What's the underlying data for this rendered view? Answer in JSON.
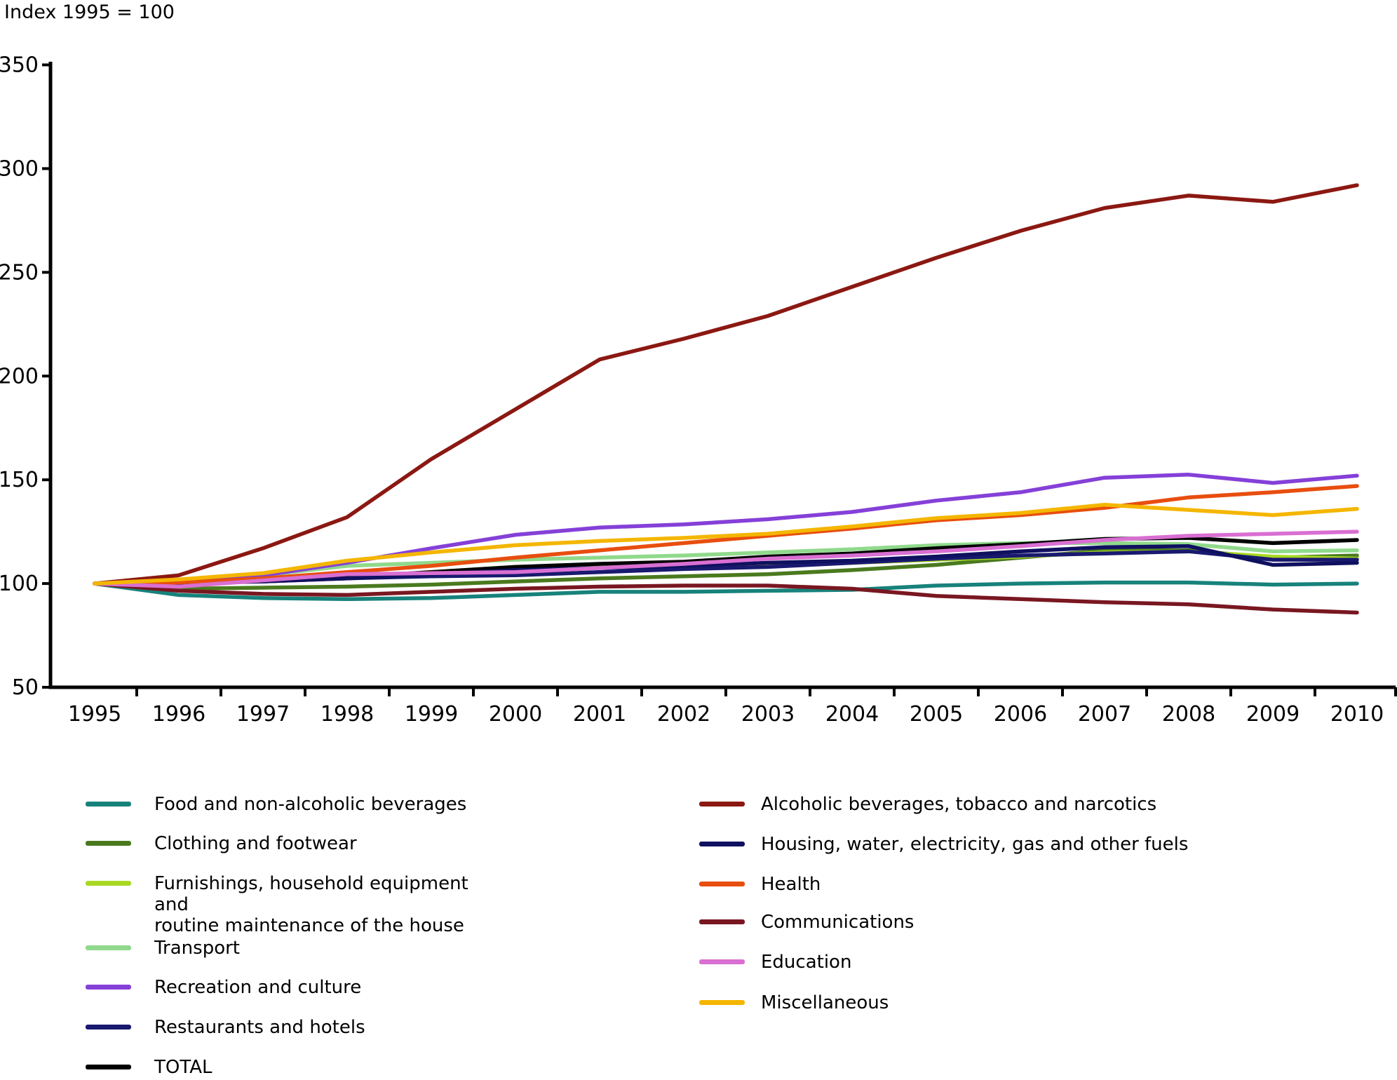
{
  "title": "Index 1995 = 100",
  "chart_data": {
    "type": "line",
    "title": "Index 1995 = 100",
    "xlabel": "",
    "ylabel": "Index 1995 = 100",
    "x": [
      1995,
      1996,
      1997,
      1998,
      1999,
      2000,
      2001,
      2002,
      2003,
      2004,
      2005,
      2006,
      2007,
      2008,
      2009,
      2010
    ],
    "ylim": [
      50,
      350
    ],
    "yticks": [
      50,
      100,
      150,
      200,
      250,
      300,
      350
    ],
    "grid": false,
    "legend_position": "bottom-two-columns",
    "series": [
      {
        "name": "Food and non-alcoholic beverages",
        "color": "#17827b",
        "legend_column": "left",
        "values": [
          100,
          94.5,
          93,
          92.5,
          93,
          94.5,
          96,
          96,
          96.5,
          97,
          99,
          100,
          100.5,
          100.5,
          99.5,
          100
        ]
      },
      {
        "name": "Clothing and footwear",
        "color": "#4a7a1e",
        "legend_column": "left",
        "values": [
          100,
          97.5,
          98,
          98.5,
          99.5,
          101,
          102.5,
          103.5,
          104.5,
          106.5,
          109,
          112.5,
          116,
          116,
          112.5,
          113.5
        ]
      },
      {
        "name": "Furnishings, household equipment and routine maintenance of the house",
        "label": "Furnishings, household equipment and\nroutine maintenance of the house",
        "color": "#a8d822",
        "legend_column": "left",
        "values": [
          100,
          100.5,
          101.5,
          103,
          105.5,
          108,
          108.5,
          109,
          109,
          110,
          111.5,
          113,
          115,
          115.5,
          113,
          112
        ]
      },
      {
        "name": "Transport",
        "color": "#90d98c",
        "legend_column": "left",
        "values": [
          100,
          101,
          104,
          108.5,
          110,
          111.5,
          112.5,
          113.5,
          115,
          116.5,
          118.5,
          119.5,
          119.5,
          119,
          115.5,
          116
        ]
      },
      {
        "name": "Recreation and culture",
        "color": "#8540d8",
        "legend_column": "left",
        "values": [
          100,
          101,
          104,
          110,
          117,
          123.5,
          127,
          128.5,
          131,
          134.5,
          140,
          144,
          151,
          152.5,
          148.5,
          152
        ]
      },
      {
        "name": "Restaurants and hotels",
        "color": "#191970",
        "legend_column": "left",
        "values": [
          100,
          100.5,
          101,
          102.5,
          103.5,
          104,
          105.5,
          107,
          108,
          110,
          112,
          113.5,
          114.5,
          115.5,
          111.5,
          111.5
        ]
      },
      {
        "name": "TOTAL",
        "color": "#000000",
        "legend_column": "left",
        "values": [
          100,
          100.5,
          101.5,
          103,
          105.5,
          108,
          109.5,
          110.5,
          113,
          114.5,
          117,
          119,
          121.5,
          122,
          119.5,
          121
        ]
      },
      {
        "name": "Alcoholic beverages, tobacco and narcotics",
        "color": "#8b1812",
        "legend_column": "right",
        "values": [
          100,
          104,
          117,
          132,
          160,
          184,
          208,
          218,
          229,
          243,
          257,
          270,
          281,
          287,
          284,
          292
        ]
      },
      {
        "name": "Housing, water, electricity, gas and other fuels",
        "color": "#101060",
        "legend_column": "right",
        "values": [
          100,
          100,
          101,
          102.5,
          104.5,
          106.5,
          107.5,
          108.5,
          110,
          111,
          113,
          115.5,
          117.5,
          118,
          109,
          110
        ]
      },
      {
        "name": "Health",
        "color": "#e84e0e",
        "legend_column": "right",
        "values": [
          100,
          100.5,
          102.5,
          105.5,
          108.5,
          112.5,
          116,
          119.5,
          123,
          126.5,
          130.5,
          133,
          136.5,
          141.5,
          144,
          147
        ]
      },
      {
        "name": "Communications",
        "color": "#791721",
        "legend_column": "right",
        "values": [
          100,
          96.5,
          95,
          94.5,
          96,
          97.5,
          98.5,
          99,
          99,
          97.5,
          94,
          92.5,
          91,
          90,
          87.5,
          86
        ]
      },
      {
        "name": "Education",
        "color": "#d96fd2",
        "legend_column": "right",
        "values": [
          100,
          98.5,
          101.5,
          104.5,
          105,
          105.5,
          107.5,
          109.5,
          112,
          113.5,
          115.5,
          118,
          121,
          123,
          124,
          125
        ]
      },
      {
        "name": "Miscellaneous",
        "color": "#f4b600",
        "legend_column": "right",
        "values": [
          100,
          102,
          105,
          111,
          115,
          118.5,
          120.5,
          122,
          124,
          127.5,
          131.5,
          134,
          138,
          135.5,
          133,
          136
        ]
      }
    ]
  }
}
